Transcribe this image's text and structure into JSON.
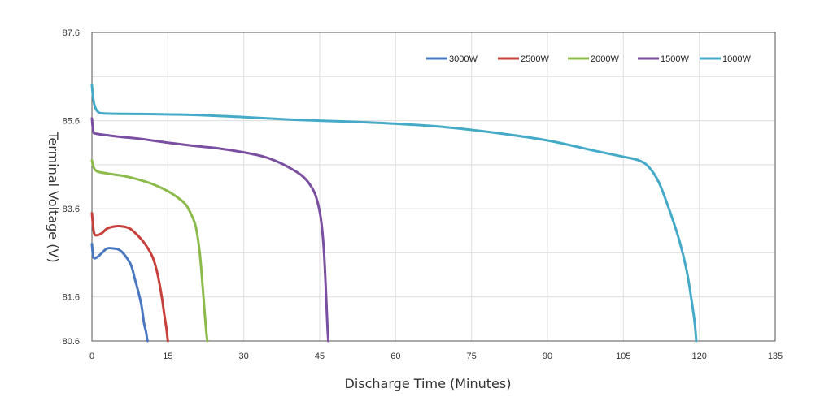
{
  "chart_data": {
    "type": "line",
    "title": "",
    "xlabel": "Discharge Time (Minutes)",
    "ylabel": "Terminal Voltage (V)",
    "xlim": [
      0,
      135
    ],
    "ylim": [
      80.6,
      87.6
    ],
    "x_ticks": [
      0,
      15,
      30,
      45,
      60,
      75,
      90,
      105,
      120,
      135
    ],
    "x_tick_labels": [
      "0",
      "15",
      "30",
      "45",
      "60",
      "75",
      "90",
      "105",
      "120",
      "135"
    ],
    "y_ticks": [
      80.6,
      81.6,
      82.6,
      83.6,
      84.6,
      85.6,
      86.6,
      87.6
    ],
    "y_tick_labels": [
      "80.6",
      "81.6",
      "",
      "83.6",
      "",
      "85.6",
      "",
      "87.6"
    ],
    "grid": true,
    "legend_position": "top-right",
    "series": [
      {
        "name": "3000W",
        "color": "#4a78c0",
        "x": [
          0,
          0.3,
          1,
          2,
          3,
          4.2,
          5.5,
          6.8,
          7.8,
          8.5,
          9.2,
          9.8,
          10.3,
          10.7,
          10.9,
          11.0
        ],
        "y": [
          82.8,
          82.5,
          82.5,
          82.6,
          82.7,
          82.7,
          82.66,
          82.5,
          82.3,
          82.0,
          81.7,
          81.4,
          81.0,
          80.8,
          80.65,
          80.6
        ]
      },
      {
        "name": "2500W",
        "color": "#c8403c",
        "x": [
          0,
          0.4,
          1,
          2,
          3,
          4.5,
          6,
          7.5,
          9,
          10.5,
          12,
          13,
          13.8,
          14.3,
          14.7,
          14.9,
          15.0
        ],
        "y": [
          83.5,
          83.06,
          83.0,
          83.05,
          83.15,
          83.2,
          83.2,
          83.15,
          83.0,
          82.8,
          82.5,
          82.1,
          81.6,
          81.2,
          80.9,
          80.7,
          80.6
        ]
      },
      {
        "name": "2000W",
        "color": "#8cbb4c",
        "x": [
          0,
          0.3,
          1,
          3,
          6,
          9,
          12,
          15,
          17,
          18.5,
          19.5,
          20.5,
          21.3,
          21.9,
          22.3,
          22.6,
          22.8
        ],
        "y": [
          84.7,
          84.55,
          84.45,
          84.4,
          84.35,
          84.27,
          84.16,
          84.0,
          83.85,
          83.7,
          83.5,
          83.2,
          82.6,
          81.8,
          81.2,
          80.8,
          80.6
        ]
      },
      {
        "name": "1500W",
        "color": "#7a4ea0",
        "x": [
          0,
          0.3,
          1,
          5,
          10,
          15,
          20,
          25,
          30,
          34,
          37,
          39.5,
          41.5,
          43,
          44.2,
          45.2,
          45.8,
          46.2,
          46.5,
          46.7
        ],
        "y": [
          85.65,
          85.35,
          85.3,
          85.24,
          85.18,
          85.1,
          85.03,
          84.97,
          84.88,
          84.78,
          84.65,
          84.5,
          84.35,
          84.16,
          83.9,
          83.4,
          82.7,
          81.8,
          81.0,
          80.6
        ]
      },
      {
        "name": "1000W",
        "color": "#44aac8",
        "x": [
          0,
          0.4,
          1.2,
          3,
          10,
          20,
          30,
          40,
          50,
          60,
          70,
          80,
          90,
          100,
          105,
          108,
          110,
          112,
          114,
          116,
          117.5,
          118.5,
          119.1,
          119.4
        ],
        "y": [
          86.4,
          86.0,
          85.8,
          85.76,
          85.75,
          85.73,
          85.68,
          85.62,
          85.58,
          85.53,
          85.45,
          85.32,
          85.15,
          84.9,
          84.78,
          84.7,
          84.55,
          84.2,
          83.6,
          82.9,
          82.2,
          81.5,
          81.0,
          80.6
        ]
      }
    ]
  }
}
